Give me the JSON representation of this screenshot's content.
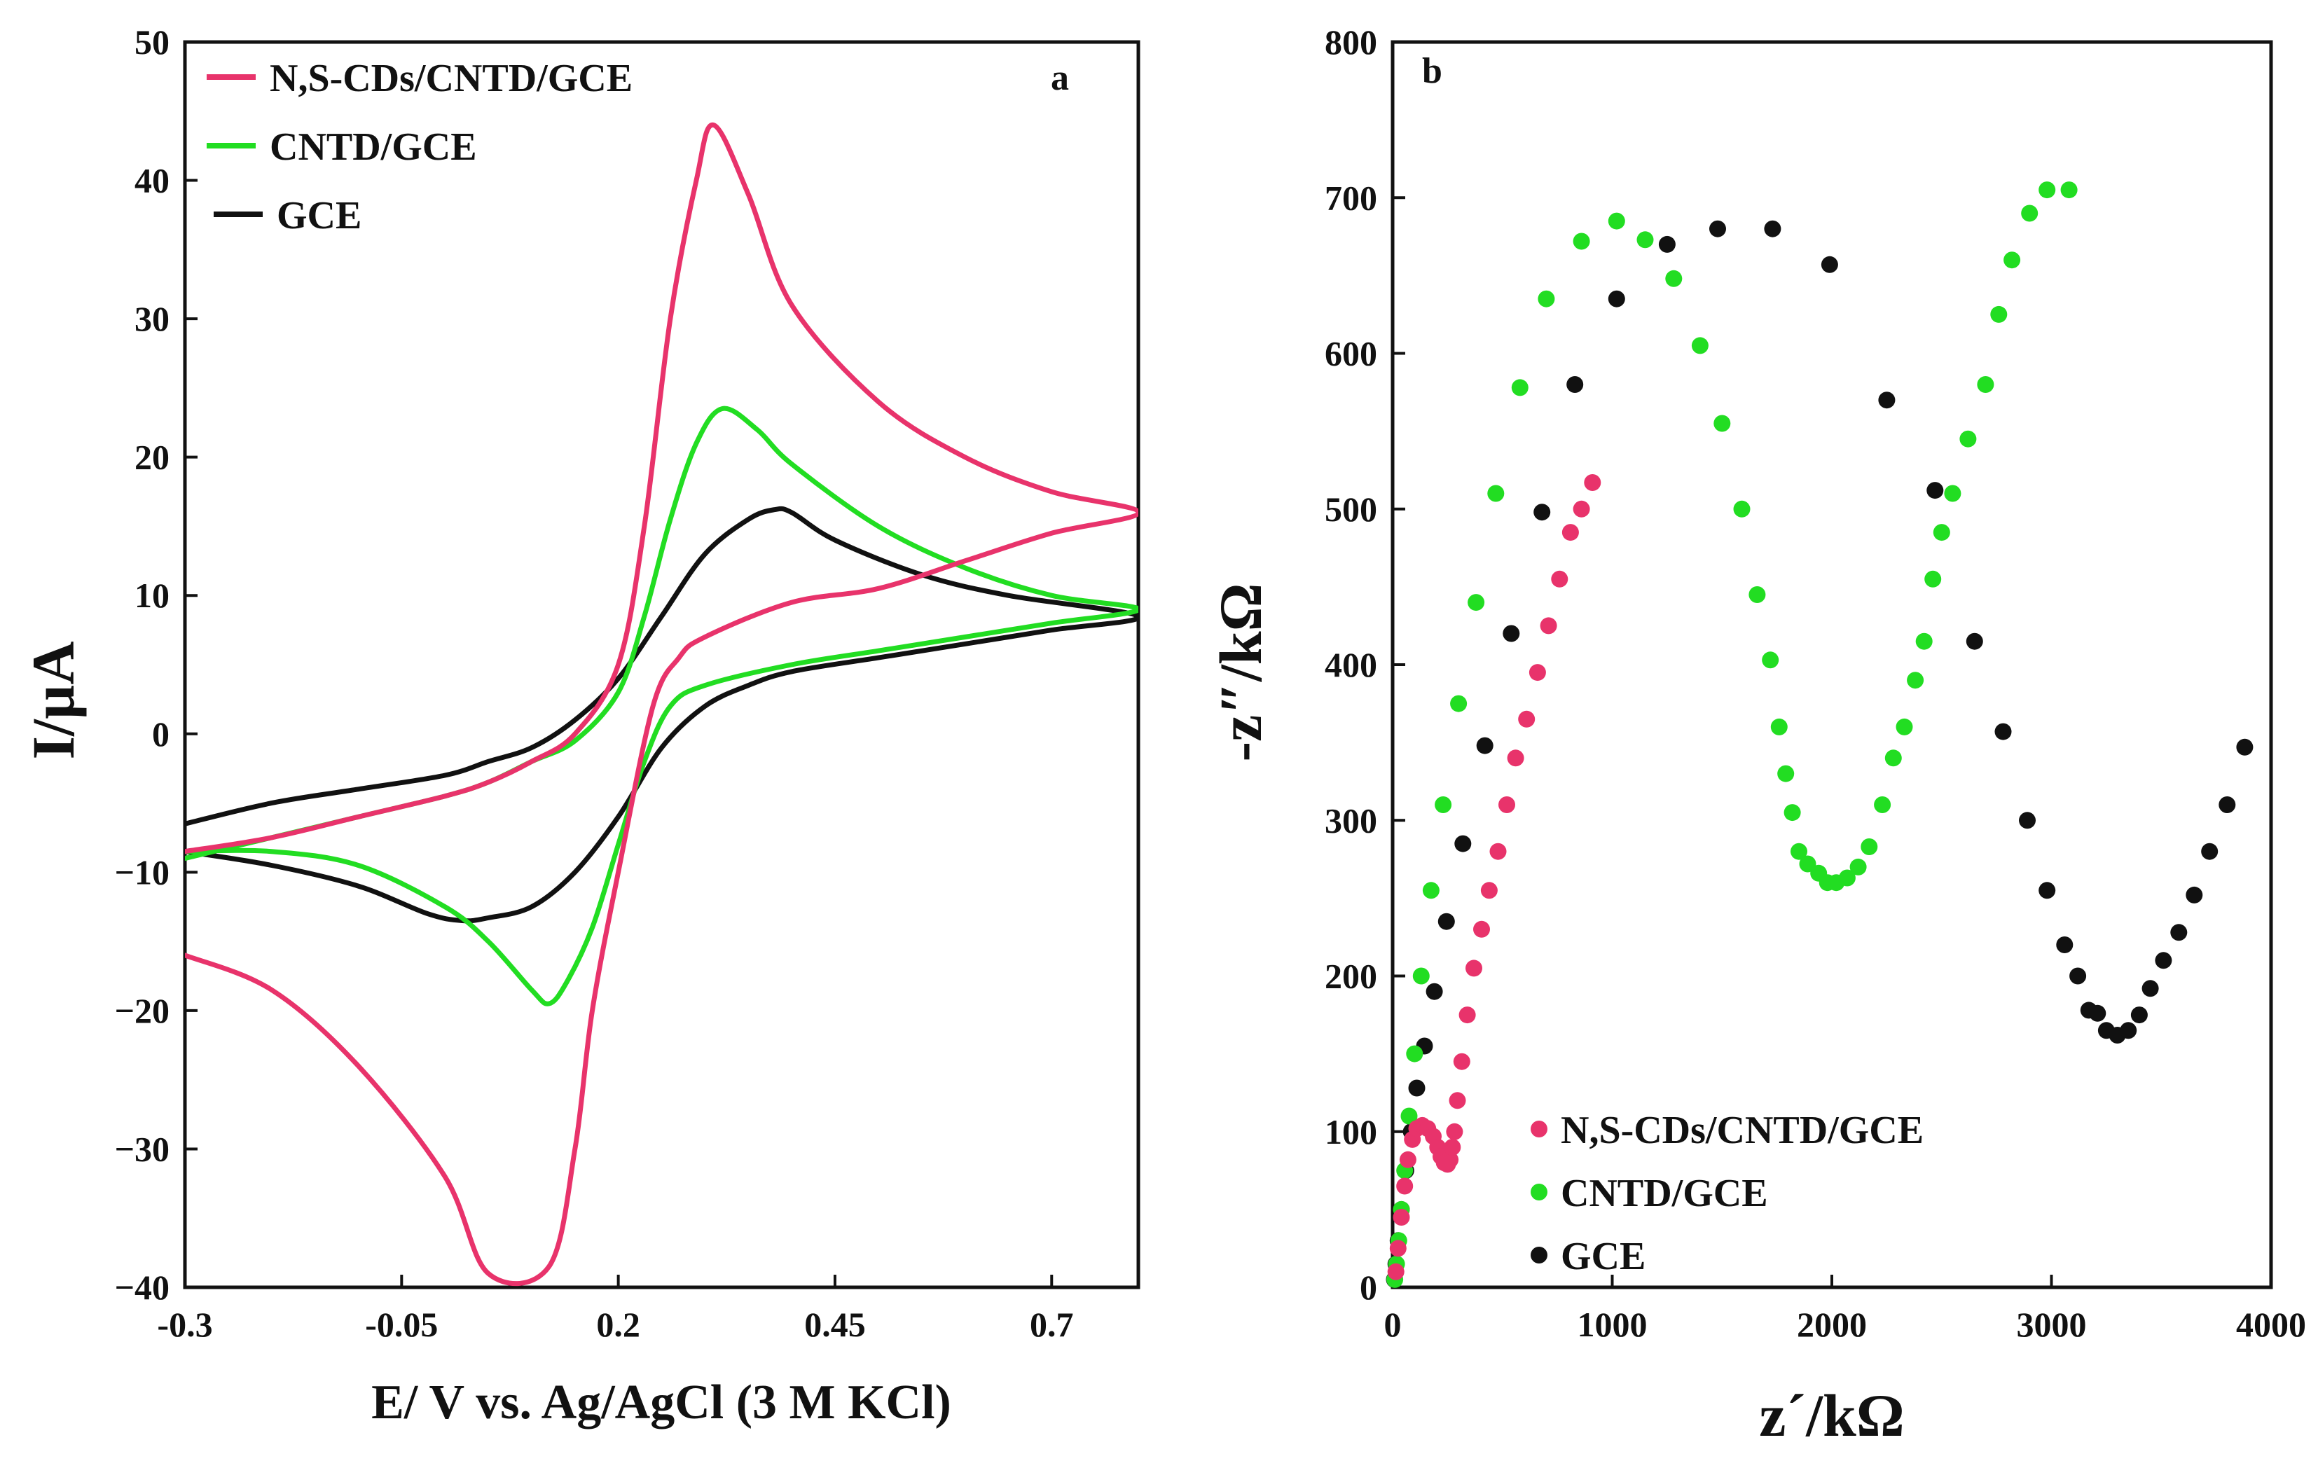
{
  "chart_data": [
    {
      "panel": "a",
      "type": "line",
      "title": "",
      "xlabel": "E/ V vs. Ag/AgCl (3 M KCl)",
      "ylabel": "I/µA",
      "xlim": [
        -0.3,
        0.8
      ],
      "ylim": [
        -40,
        50
      ],
      "xticks": [
        -0.3,
        -0.05,
        0.2,
        0.45,
        0.7
      ],
      "xtick_labels": [
        "-0.3",
        "-0.05",
        "0.2",
        "0.45",
        "0.7"
      ],
      "yticks": [
        -40,
        -30,
        -20,
        -10,
        0,
        10,
        20,
        30,
        40,
        50
      ],
      "ytick_labels": [
        "−40",
        "−30",
        "−20",
        "−10",
        "0",
        "10",
        "20",
        "30",
        "40",
        "50"
      ],
      "legend_position": "top-left",
      "series": [
        {
          "name": "N,S-CDs/CNTD/GCE",
          "color": "#e8336b",
          "x": [
            -0.3,
            -0.2,
            -0.1,
            0.0,
            0.05,
            0.1,
            0.15,
            0.2,
            0.23,
            0.26,
            0.29,
            0.31,
            0.35,
            0.4,
            0.5,
            0.6,
            0.7,
            0.8,
            0.7,
            0.6,
            0.5,
            0.4,
            0.3,
            0.27,
            0.24,
            0.2,
            0.17,
            0.15,
            0.12,
            0.05,
            0.0,
            -0.1,
            -0.2,
            -0.3
          ],
          "y": [
            -8.5,
            -7.5,
            -6.0,
            -4.5,
            -3.5,
            -2.0,
            0.0,
            5.0,
            15.0,
            30.0,
            40.0,
            44.0,
            39.0,
            31.0,
            24.0,
            20.0,
            17.5,
            16.0,
            14.5,
            12.5,
            10.5,
            9.5,
            7.0,
            5.5,
            2.0,
            -10.0,
            -20.0,
            -30.0,
            -38.5,
            -39.0,
            -32.0,
            -24.0,
            -18.5,
            -16.0
          ]
        },
        {
          "name": "CNTD/GCE",
          "color": "#22dd22",
          "x": [
            -0.3,
            -0.2,
            -0.1,
            0.0,
            0.05,
            0.1,
            0.15,
            0.2,
            0.23,
            0.26,
            0.29,
            0.32,
            0.36,
            0.4,
            0.5,
            0.6,
            0.7,
            0.8,
            0.7,
            0.6,
            0.5,
            0.4,
            0.3,
            0.26,
            0.23,
            0.2,
            0.17,
            0.14,
            0.12,
            0.1,
            0.05,
            0.0,
            -0.1,
            -0.2,
            -0.3
          ],
          "y": [
            -9.0,
            -7.5,
            -6.0,
            -4.5,
            -3.5,
            -2.0,
            -0.5,
            3.0,
            8.5,
            15.5,
            21.0,
            23.5,
            22.0,
            19.5,
            15.0,
            12.0,
            10.0,
            9.0,
            8.0,
            7.0,
            6.0,
            5.0,
            3.5,
            2.0,
            -2.0,
            -8.0,
            -14.0,
            -18.0,
            -19.5,
            -18.5,
            -15.0,
            -12.5,
            -9.5,
            -8.5,
            -8.5
          ]
        },
        {
          "name": "GCE",
          "color": "#111111",
          "x": [
            -0.3,
            -0.2,
            -0.1,
            0.0,
            0.05,
            0.1,
            0.15,
            0.2,
            0.25,
            0.3,
            0.35,
            0.38,
            0.4,
            0.45,
            0.55,
            0.65,
            0.8,
            0.7,
            0.6,
            0.5,
            0.4,
            0.35,
            0.3,
            0.25,
            0.2,
            0.15,
            0.1,
            0.05,
            0.02,
            -0.02,
            -0.1,
            -0.2,
            -0.3
          ],
          "y": [
            -6.5,
            -5.0,
            -4.0,
            -3.0,
            -2.0,
            -1.0,
            1.0,
            4.0,
            8.5,
            13.0,
            15.5,
            16.2,
            16.0,
            14.0,
            11.5,
            10.0,
            8.5,
            7.5,
            6.5,
            5.5,
            4.5,
            3.5,
            2.0,
            -1.0,
            -6.0,
            -10.0,
            -12.5,
            -13.3,
            -13.5,
            -13.0,
            -11.0,
            -9.5,
            -8.5
          ]
        }
      ]
    },
    {
      "panel": "b",
      "type": "scatter",
      "title": "",
      "xlabel": "z´/kΩ",
      "ylabel": "-z″/kΩ",
      "xlim": [
        0,
        4000
      ],
      "ylim": [
        0,
        800
      ],
      "xticks": [
        0,
        1000,
        2000,
        3000,
        4000
      ],
      "xtick_labels": [
        "0",
        "1000",
        "2000",
        "3000",
        "4000"
      ],
      "yticks": [
        0,
        100,
        200,
        300,
        400,
        500,
        600,
        700,
        800
      ],
      "ytick_labels": [
        "0",
        "100",
        "200",
        "300",
        "400",
        "500",
        "600",
        "700",
        "800"
      ],
      "legend_position": "bottom-left",
      "series": [
        {
          "name": "N,S-CDs/CNTD/GCE",
          "color": "#e8336b",
          "x": [
            15,
            25,
            40,
            55,
            70,
            90,
            110,
            135,
            160,
            185,
            205,
            220,
            235,
            250,
            262,
            272,
            282,
            295,
            315,
            340,
            370,
            405,
            440,
            480,
            520,
            560,
            610,
            660,
            710,
            760,
            810,
            860,
            910
          ],
          "y": [
            10,
            25,
            45,
            65,
            82,
            95,
            102,
            104,
            102,
            97,
            90,
            84,
            80,
            79,
            82,
            90,
            100,
            120,
            145,
            175,
            205,
            230,
            255,
            280,
            310,
            340,
            365,
            395,
            425,
            455,
            485,
            500,
            517
          ]
        },
        {
          "name": "CNTD/GCE",
          "color": "#22dd22",
          "x": [
            10,
            18,
            28,
            40,
            55,
            75,
            100,
            130,
            175,
            230,
            300,
            380,
            470,
            580,
            700,
            860,
            1020,
            1150,
            1280,
            1400,
            1500,
            1590,
            1660,
            1720,
            1760,
            1790,
            1820,
            1850,
            1890,
            1940,
            1980,
            2020,
            2070,
            2120,
            2170,
            2230,
            2280,
            2330,
            2380,
            2420,
            2460,
            2500,
            2550,
            2620,
            2700,
            2760,
            2820,
            2900,
            2980,
            3080
          ],
          "y": [
            5,
            15,
            30,
            50,
            75,
            110,
            150,
            200,
            255,
            310,
            375,
            440,
            510,
            578,
            635,
            672,
            685,
            673,
            648,
            605,
            555,
            500,
            445,
            403,
            360,
            330,
            305,
            280,
            272,
            266,
            260,
            260,
            263,
            270,
            283,
            310,
            340,
            360,
            390,
            415,
            455,
            485,
            510,
            545,
            580,
            625,
            660,
            690,
            705,
            705
          ]
        },
        {
          "name": "GCE",
          "color": "#111111",
          "x": [
            8,
            15,
            25,
            40,
            60,
            85,
            110,
            145,
            190,
            245,
            320,
            420,
            540,
            680,
            830,
            1020,
            1250,
            1480,
            1730,
            1990,
            2250,
            2470,
            2650,
            2780,
            2890,
            2980,
            3060,
            3120,
            3170,
            3210,
            3250,
            3300,
            3350,
            3400,
            3450,
            3510,
            3580,
            3650,
            3720,
            3800,
            3880
          ],
          "y": [
            5,
            15,
            30,
            50,
            75,
            100,
            128,
            155,
            190,
            235,
            285,
            348,
            420,
            498,
            580,
            635,
            670,
            680,
            680,
            657,
            570,
            512,
            415,
            357,
            300,
            255,
            220,
            200,
            178,
            176,
            165,
            162,
            165,
            175,
            192,
            210,
            228,
            252,
            280,
            310,
            347
          ]
        }
      ]
    }
  ]
}
